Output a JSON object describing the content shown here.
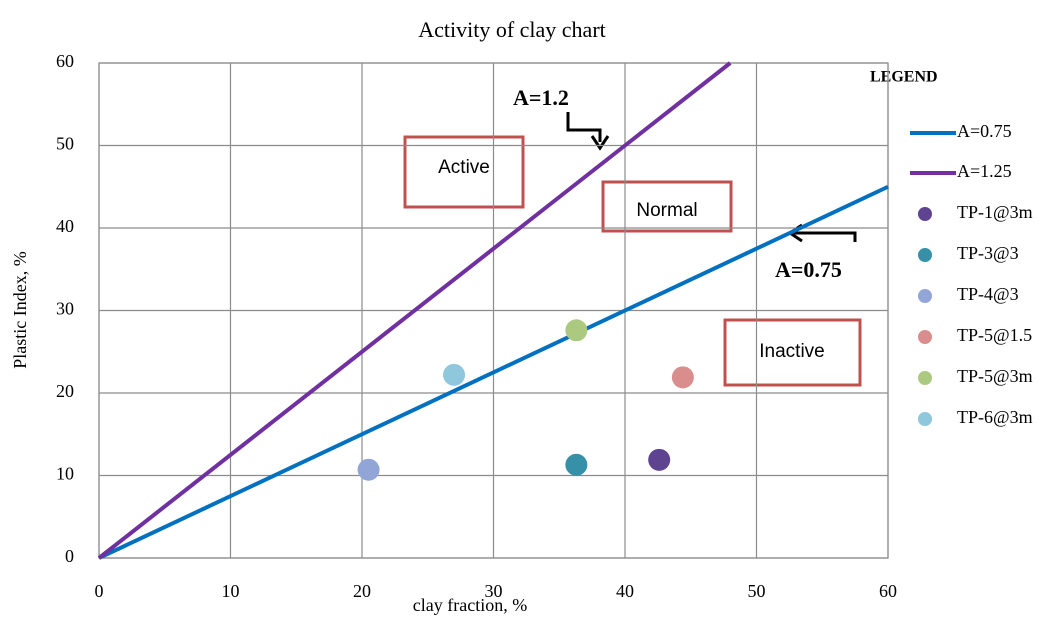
{
  "chart_data": {
    "type": "scatter",
    "title": "Activity of clay chart",
    "x_label": "clay fraction, %",
    "y_label": "Plastic Index, %",
    "xlim": [
      0,
      60
    ],
    "ylim": [
      0,
      60
    ],
    "xticks": [
      0,
      10,
      20,
      30,
      40,
      50,
      60
    ],
    "yticks": [
      0,
      10,
      20,
      30,
      40,
      50,
      60
    ],
    "grid": true,
    "legend_title": "LEGEND",
    "legend_position": "right",
    "series": [
      {
        "name": "A=0.75",
        "type": "line",
        "color": "#0070c0",
        "x": [
          0,
          60
        ],
        "values": [
          0,
          45
        ]
      },
      {
        "name": "A=1.25",
        "type": "line",
        "color": "#7030a0",
        "x": [
          0,
          48
        ],
        "values": [
          0,
          60
        ]
      },
      {
        "name": "TP-1@3m",
        "type": "scatter",
        "color": "#5e4390",
        "x": [
          42.6
        ],
        "values": [
          11.9
        ]
      },
      {
        "name": "TP-3@3",
        "type": "scatter",
        "color": "#3590a8",
        "x": [
          36.3
        ],
        "values": [
          11.3
        ]
      },
      {
        "name": "TP-4@3",
        "type": "scatter",
        "color": "#91a5d6",
        "x": [
          20.5
        ],
        "values": [
          10.7
        ]
      },
      {
        "name": "TP-5@1.5",
        "type": "scatter",
        "color": "#d98d8d",
        "x": [
          44.4
        ],
        "values": [
          21.9
        ]
      },
      {
        "name": "TP-5@3m",
        "type": "scatter",
        "color": "#abca80",
        "x": [
          36.3
        ],
        "values": [
          27.6
        ]
      },
      {
        "name": "TP-6@3m",
        "type": "scatter",
        "color": "#8fc7dd",
        "x": [
          27.0
        ],
        "values": [
          22.2
        ]
      }
    ],
    "annotations": [
      "A=1.2",
      "A=0.75",
      "Active",
      "Normal",
      "Inactive"
    ]
  }
}
